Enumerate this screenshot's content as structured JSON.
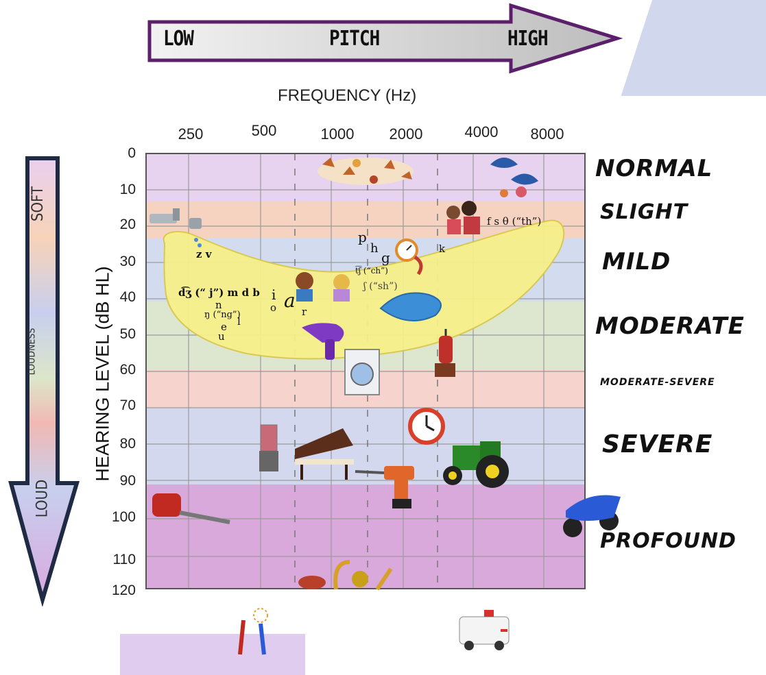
{
  "pitch": {
    "low": "LOW",
    "mid": "PITCH",
    "high": "HIGH"
  },
  "frequency_title": "FREQUENCY (Hz)",
  "frequency_ticks": [
    "250",
    "500",
    "1000",
    "2000",
    "4000",
    "8000"
  ],
  "y_axis": {
    "title": "HEARING LEVEL (dB HL)",
    "ticks": [
      "0",
      "10",
      "20",
      "30",
      "40",
      "50",
      "60",
      "70",
      "80",
      "90",
      "100",
      "110",
      "120"
    ]
  },
  "loudness_arrow": {
    "top": "SOFT",
    "middle": "LOUDNESS",
    "bottom": "LOUD"
  },
  "bands": [
    {
      "name": "NORMAL",
      "color": "#e7d3ef"
    },
    {
      "name": "SLIGHT",
      "color": "#f6d2c0"
    },
    {
      "name": "MILD",
      "color": "#d3dcef"
    },
    {
      "name": "MODERATE",
      "color": "#dde6cf"
    },
    {
      "name": "MODERATE-SEVERE",
      "color": "#f6d4cd"
    },
    {
      "name": "SEVERE",
      "color": "#d4d8ef"
    },
    {
      "name": "PROFOUND",
      "color": "#d9a9db"
    }
  ],
  "speech_sounds": {
    "zv": "z v",
    "dz": "d͡ʒ (“ j”) m d b",
    "n": "n",
    "ng": "ŋ (“ng”)",
    "l": "l",
    "e": "e",
    "u": "u",
    "i": "i",
    "o": "o",
    "a": "a",
    "r": "r",
    "p": "p",
    "h": "h",
    "g": "g",
    "ch": "t͡ʃ (“ch”)",
    "sh": "ʃ (“sh”)",
    "k": "k",
    "fsth": "f s θ (“th”)"
  },
  "colors": {
    "speech_banana": "#f7f08a",
    "arrow_border": "#5b1f6b",
    "arrow_fill": "#c8c8c8"
  },
  "icons": [
    "leaves-icon",
    "birds-icon",
    "faucet-icon",
    "people-icon",
    "clock-icon",
    "children-icon",
    "puddle-icon",
    "hair-dryer-icon",
    "washing-machine-icon",
    "vacuum-icon",
    "alarm-clock-icon",
    "blender-icon",
    "piano-icon",
    "drill-icon",
    "tractor-icon",
    "leaf-blower-icon",
    "motorcycle-icon",
    "instruments-icon",
    "fireworks-icon",
    "ambulance-icon"
  ]
}
